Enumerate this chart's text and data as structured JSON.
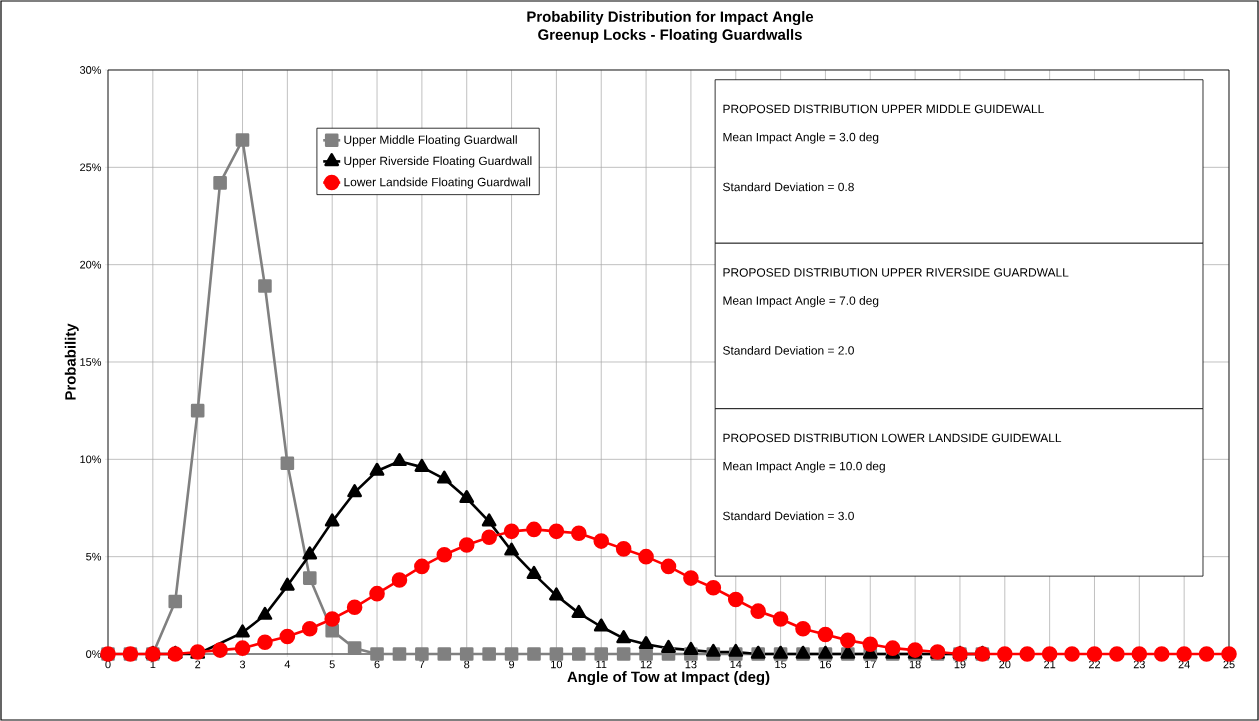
{
  "chart_data": {
    "type": "line",
    "title": "Probability Distribution for Impact Angle",
    "subtitle": "Greenup Locks -  Floating Guardwalls",
    "xlabel": "Angle of Tow at Impact (deg)",
    "ylabel": "Probability",
    "x": [
      0,
      0.5,
      1,
      1.5,
      2,
      2.5,
      3,
      3.5,
      4,
      4.5,
      5,
      5.5,
      6,
      6.5,
      7,
      7.5,
      8,
      8.5,
      9,
      9.5,
      10,
      10.5,
      11,
      11.5,
      12,
      12.5,
      13,
      13.5,
      14,
      14.5,
      15,
      15.5,
      16,
      16.5,
      17,
      17.5,
      18,
      18.5,
      19,
      19.5,
      20,
      20.5,
      21,
      21.5,
      22,
      22.5,
      23,
      23.5,
      24,
      24.5,
      25
    ],
    "series": [
      {
        "name": "Upper Middle Floating Guardwall",
        "color": "#808080",
        "marker": "square",
        "values": [
          0,
          0,
          0,
          2.7,
          12.5,
          24.2,
          26.4,
          18.9,
          9.8,
          3.9,
          1.2,
          0.3,
          0,
          0,
          0,
          0,
          0,
          0,
          0,
          0,
          0,
          0,
          0,
          0,
          0,
          0,
          0,
          0,
          0,
          0,
          0,
          0,
          0,
          0,
          0,
          0,
          0,
          0,
          0,
          0,
          null,
          null,
          null,
          null,
          null,
          null,
          null,
          null,
          null,
          null,
          null
        ]
      },
      {
        "name": "Upper Riverside Floating Guardwall",
        "color": "#000000",
        "marker": "triangle",
        "values": [
          null,
          null,
          0,
          0,
          0,
          null,
          1.1,
          2.0,
          3.5,
          5.1,
          6.8,
          8.3,
          9.4,
          9.9,
          9.6,
          9.0,
          8.0,
          6.8,
          5.3,
          4.1,
          3.0,
          2.1,
          1.4,
          0.8,
          0.5,
          0.3,
          0.2,
          0.1,
          0.1,
          0,
          0,
          0,
          0,
          0,
          0,
          0,
          0,
          0,
          0,
          0,
          null,
          null,
          null,
          null,
          null,
          null,
          null,
          null,
          null,
          null,
          null
        ]
      },
      {
        "name": "Lower Landside Floating Guardwall",
        "color": "#ff0000",
        "marker": "circle",
        "values": [
          0,
          0,
          0,
          0,
          0.1,
          0.2,
          0.3,
          0.6,
          0.9,
          1.3,
          1.8,
          2.4,
          3.1,
          3.8,
          4.5,
          5.1,
          5.6,
          6.0,
          6.3,
          6.4,
          6.3,
          6.2,
          5.8,
          5.4,
          5.0,
          4.5,
          3.9,
          3.4,
          2.8,
          2.2,
          1.8,
          1.3,
          1.0,
          0.7,
          0.5,
          0.3,
          0.2,
          0.1,
          0,
          0,
          0,
          0,
          0,
          0,
          0,
          0,
          0,
          0,
          0,
          0,
          0
        ]
      }
    ],
    "xlim": [
      0,
      25
    ],
    "ylim": [
      0,
      30
    ],
    "xticks": [
      0,
      1,
      2,
      3,
      4,
      5,
      6,
      7,
      8,
      9,
      10,
      11,
      12,
      13,
      14,
      15,
      16,
      17,
      18,
      19,
      20,
      21,
      22,
      23,
      24,
      25
    ],
    "yticks": [
      {
        "value": 0,
        "label": "0%"
      },
      {
        "value": 5,
        "label": "5%"
      },
      {
        "value": 10,
        "label": "10%"
      },
      {
        "value": 15,
        "label": "15%"
      },
      {
        "value": 20,
        "label": "20%"
      },
      {
        "value": 25,
        "label": "25%"
      },
      {
        "value": 30,
        "label": "30%"
      }
    ],
    "grid": true,
    "legend": "top left",
    "line_style": "solid",
    "annotations": [
      "PROPOSED DISTRIBUTION UPPER MIDDLE GUIDEWALL",
      "Mean Impact Angle = 3.0 deg",
      "Standard Deviation = 0.8",
      "PROPOSED DISTRIBUTION UPPER RIVERSIDE GUARDWALL",
      "Mean Impact Angle = 7.0 deg",
      "Standard Deviation = 2.0",
      "PROPOSED DISTRIBUTION LOWER LANDSIDE GUIDEWALL",
      "Mean Impact Angle = 10.0 deg",
      "Standard Deviation = 3.0"
    ]
  }
}
